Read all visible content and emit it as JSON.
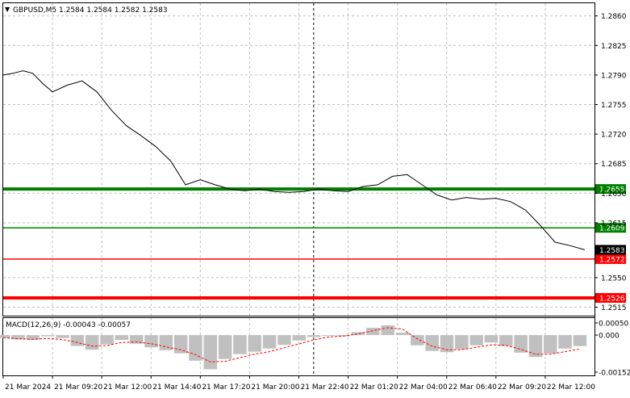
{
  "header": {
    "symbol_line": "GBPUSD,M5  1.2584 1.2584 1.2582 1.2583"
  },
  "indicator": {
    "label": "MACD(12,26,9) -0.00043 -0.00057",
    "ticks": [
      "0.00050",
      "0.000",
      "-0.00152"
    ]
  },
  "colors": {
    "price_line": "#000000",
    "grid": "#c0c0c0",
    "level_green": "#008000",
    "level_red": "#ff0000",
    "macd_histogram": "#c0c0c0",
    "macd_signal": "#ff0000",
    "crosshair": "#000000"
  },
  "chart_data": [
    {
      "type": "line",
      "symbol": "GBPUSD",
      "timeframe": "M5",
      "ohlc_readout": {
        "open": 1.2584,
        "high": 1.2584,
        "low": 1.2582,
        "close": 1.2583
      },
      "ylim": [
        1.2505,
        1.2875
      ],
      "yticks": [
        "1.2860",
        "1.2825",
        "1.2790",
        "1.2755",
        "1.2720",
        "1.2685",
        "1.2650",
        "1.2615",
        "1.2550",
        "1.2515"
      ],
      "xticks": [
        "21 Mar 2024",
        "21 Mar 09:20",
        "21 Mar 12:00",
        "21 Mar 14:40",
        "21 Mar 17:20",
        "21 Mar 20:00",
        "21 Mar 22:40",
        "22 Mar 01:20",
        "22 Mar 04:00",
        "22 Mar 06:40",
        "22 Mar 09:20",
        "22 Mar 12:00"
      ],
      "current_price": {
        "label": "1.2583",
        "value": 1.2583
      },
      "levels": [
        {
          "label": "1.2655",
          "value": 1.2655,
          "color": "#008000",
          "thick": true
        },
        {
          "label": "1.2609",
          "value": 1.2609,
          "color": "#008000",
          "thick": false
        },
        {
          "label": "1.2572",
          "value": 1.2572,
          "color": "#ff0000",
          "thick": false
        },
        {
          "label": "1.2526",
          "value": 1.2526,
          "color": "#ff0000",
          "thick": true
        }
      ],
      "series": [
        {
          "x": [
            0.0,
            0.2,
            0.4,
            0.6,
            0.8,
            1.0,
            1.3,
            1.6,
            1.9,
            2.2,
            2.5,
            2.8,
            3.1,
            3.4,
            3.7,
            4.0,
            4.3,
            4.6,
            4.9,
            5.2,
            5.5,
            5.8,
            6.1,
            6.4,
            6.7,
            7.0,
            7.3,
            7.6,
            7.9,
            8.2,
            8.5,
            8.8,
            9.1,
            9.4,
            9.7,
            10.0,
            10.3,
            10.6,
            10.9,
            11.2,
            11.5,
            11.8
          ],
          "values": [
            1.279,
            1.2792,
            1.2795,
            1.2792,
            1.278,
            1.277,
            1.2778,
            1.2783,
            1.277,
            1.2748,
            1.273,
            1.2718,
            1.2705,
            1.2688,
            1.266,
            1.2666,
            1.266,
            1.2655,
            1.2653,
            1.2655,
            1.2652,
            1.2651,
            1.2652,
            1.2655,
            1.2653,
            1.2652,
            1.2658,
            1.266,
            1.267,
            1.2672,
            1.266,
            1.2648,
            1.2642,
            1.2645,
            1.2643,
            1.2644,
            1.264,
            1.263,
            1.2612,
            1.2592,
            1.2588,
            1.2583
          ]
        }
      ]
    },
    {
      "type": "bar",
      "name": "MACD(12,26,9)",
      "main_value": -0.00043,
      "signal_value": -0.00057,
      "ylim": [
        -0.00152,
        0.0005
      ],
      "yticks": [
        0.0005,
        0.0,
        -0.00152
      ],
      "x": [
        0.0,
        0.3,
        0.6,
        0.9,
        1.2,
        1.5,
        1.8,
        2.1,
        2.4,
        2.7,
        3.0,
        3.3,
        3.6,
        3.9,
        4.2,
        4.5,
        4.8,
        5.1,
        5.4,
        5.7,
        6.0,
        6.3,
        6.6,
        6.9,
        7.2,
        7.5,
        7.8,
        8.1,
        8.4,
        8.7,
        9.0,
        9.3,
        9.6,
        9.9,
        10.2,
        10.5,
        10.8,
        11.1,
        11.4,
        11.7
      ],
      "histogram": [
        -0.00012,
        -0.00018,
        -0.0002,
        -5e-05,
        -0.00012,
        -0.00045,
        -0.0006,
        -0.00038,
        -0.0002,
        -0.00035,
        -0.0005,
        -0.00062,
        -0.00075,
        -0.00105,
        -0.0014,
        -0.00098,
        -0.00078,
        -0.00068,
        -0.00055,
        -0.0004,
        -0.00022,
        -8e-05,
        0.0,
        -5e-05,
        0.00012,
        0.0003,
        0.0004,
        0.0001,
        -0.00042,
        -0.00065,
        -0.0007,
        -0.00058,
        -0.00042,
        -0.0003,
        -0.00045,
        -0.00072,
        -0.0009,
        -0.00075,
        -0.00055,
        -0.00045
      ],
      "signal": [
        -0.0001,
        -0.00015,
        -0.00017,
        -0.00014,
        -0.00018,
        -0.0003,
        -0.00045,
        -0.00043,
        -0.0003,
        -0.00028,
        -0.00035,
        -0.00048,
        -0.0006,
        -0.0008,
        -0.0011,
        -0.00108,
        -0.00092,
        -0.00078,
        -0.00068,
        -0.00052,
        -0.00036,
        -0.0002,
        -8e-05,
        -4e-05,
        5e-05,
        0.00018,
        0.0003,
        0.00025,
        -0.00015,
        -0.00045,
        -0.0006,
        -0.0006,
        -0.0005,
        -0.0004,
        -0.00042,
        -0.00058,
        -0.00078,
        -0.00078,
        -0.00068,
        -0.00057
      ]
    }
  ]
}
